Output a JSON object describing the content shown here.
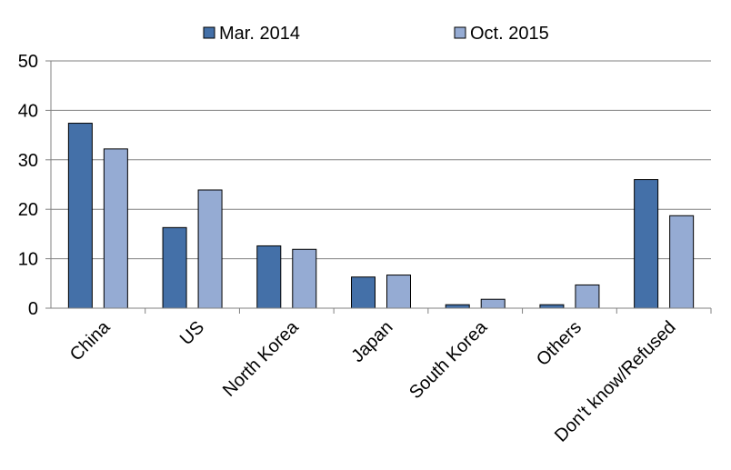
{
  "chart_data": {
    "type": "bar",
    "categories": [
      "China",
      "US",
      "North Korea",
      "Japan",
      "South Korea",
      "Others",
      "Don't know/Refused"
    ],
    "series": [
      {
        "name": "Mar. 2014",
        "values": [
          37.4,
          16.3,
          12.6,
          6.3,
          0.7,
          0.7,
          26.0
        ],
        "color": "#4470a8"
      },
      {
        "name": "Oct. 2015",
        "values": [
          32.2,
          23.9,
          11.9,
          6.7,
          1.8,
          4.7,
          18.7
        ],
        "color": "#95abd3"
      }
    ],
    "yticks": [
      "0",
      "10",
      "20",
      "30",
      "40",
      "50"
    ],
    "ylim": [
      0,
      50
    ],
    "grid": true,
    "legend_position": "top-center",
    "title": "",
    "xlabel": "",
    "ylabel": ""
  }
}
